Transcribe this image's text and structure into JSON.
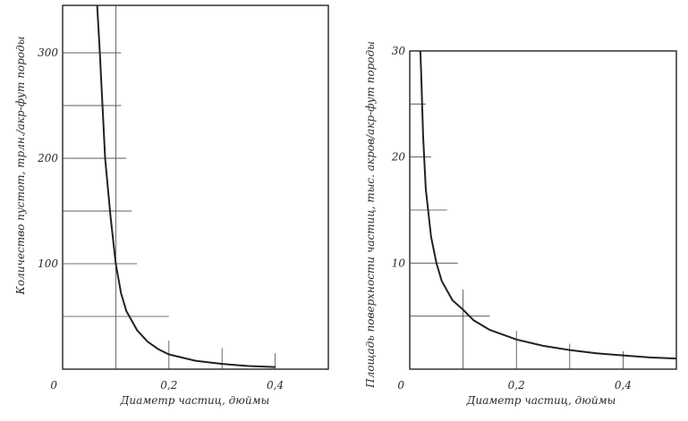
{
  "chart_data": [
    {
      "type": "line",
      "xlabel": "Диаметр частиц, дюймы",
      "ylabel": "Количество пустот, трлн./акр-фут породы",
      "xlim": [
        0,
        0.5
      ],
      "ylim": [
        0,
        345
      ],
      "x_tick_labels": [
        {
          "value": 0,
          "label": "0"
        },
        {
          "value": 0.2,
          "label": "0,2"
        },
        {
          "value": 0.4,
          "label": "0,4"
        }
      ],
      "y_tick_labels": [
        {
          "value": 100,
          "label": "100"
        },
        {
          "value": 200,
          "label": "200"
        },
        {
          "value": 300,
          "label": "300"
        }
      ],
      "gridlines": [
        {
          "y": 50,
          "x_to": 0.2
        },
        {
          "y": 100,
          "x_to": 0.14
        },
        {
          "y": 150,
          "x_to": 0.13
        },
        {
          "y": 200,
          "x_to": 0.12
        },
        {
          "y": 250,
          "x_to": 0.11
        },
        {
          "y": 300,
          "x_to": 0.11
        },
        {
          "x": 0.1,
          "y_to": 345
        },
        {
          "x": 0.2,
          "y_to": 27
        },
        {
          "x": 0.3,
          "y_to": 20
        },
        {
          "x": 0.4,
          "y_to": 15
        }
      ],
      "series": [
        {
          "color": "#222222",
          "x": [
            0.065,
            0.07,
            0.08,
            0.09,
            0.1,
            0.11,
            0.12,
            0.14,
            0.16,
            0.18,
            0.2,
            0.25,
            0.3,
            0.35,
            0.4
          ],
          "y": [
            345,
            300,
            200,
            145,
            100,
            72,
            55,
            37,
            26,
            19,
            14,
            8,
            5,
            3,
            2
          ]
        }
      ]
    },
    {
      "type": "line",
      "xlabel": "Диаметр частиц, дюймы",
      "ylabel": "Площадь поверхности частиц, тыс. акров/акр-фут породы",
      "xlim": [
        0,
        0.5
      ],
      "ylim": [
        0,
        30
      ],
      "x_tick_labels": [
        {
          "value": 0,
          "label": "0"
        },
        {
          "value": 0.2,
          "label": "0,2"
        },
        {
          "value": 0.4,
          "label": "0,4"
        }
      ],
      "y_tick_labels": [
        {
          "value": 10,
          "label": "10"
        },
        {
          "value": 20,
          "label": "20"
        },
        {
          "value": 30,
          "label": "30"
        }
      ],
      "gridlines": [
        {
          "y": 5,
          "x_to": 0.15
        },
        {
          "y": 10,
          "x_to": 0.09
        },
        {
          "y": 15,
          "x_to": 0.07
        },
        {
          "y": 20,
          "x_to": 0.04
        },
        {
          "y": 25,
          "x_to": 0.03
        },
        {
          "x": 0.1,
          "y_to": 7.5
        },
        {
          "x": 0.2,
          "y_to": 3.6
        },
        {
          "x": 0.3,
          "y_to": 2.4
        },
        {
          "x": 0.4,
          "y_to": 1.7
        }
      ],
      "series": [
        {
          "color": "#222222",
          "x": [
            0.02,
            0.022,
            0.025,
            0.03,
            0.04,
            0.05,
            0.06,
            0.08,
            0.1,
            0.12,
            0.15,
            0.2,
            0.25,
            0.3,
            0.35,
            0.4,
            0.45,
            0.5
          ],
          "y": [
            30,
            27,
            22,
            17,
            12.5,
            10,
            8.3,
            6.5,
            5.6,
            4.6,
            3.7,
            2.8,
            2.2,
            1.8,
            1.5,
            1.3,
            1.1,
            1.0
          ]
        }
      ]
    }
  ]
}
